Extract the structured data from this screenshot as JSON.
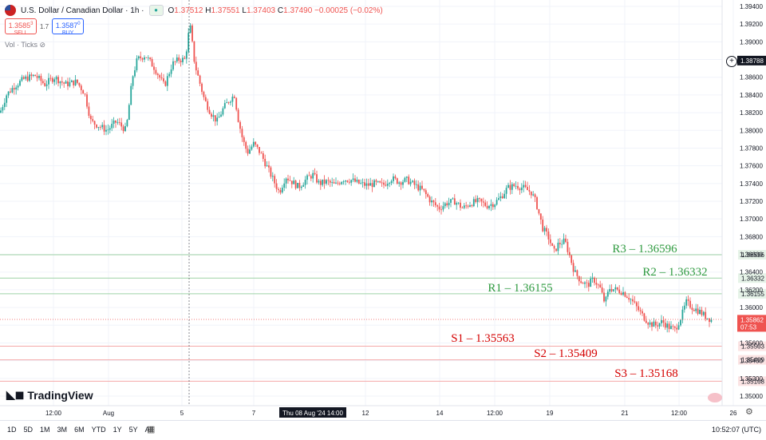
{
  "header": {
    "symbol": "U.S. Dollar / Canadian Dollar · 1h ·",
    "ohlc": {
      "o_label": "O",
      "o": "1.37512",
      "h_label": "H",
      "h": "1.37551",
      "l_label": "L",
      "l": "1.37403",
      "c_label": "C",
      "c": "1.37490",
      "change": "−0.00025 (−0.02%)"
    },
    "sell_price": "1.3585",
    "sell_sup": "3",
    "sell_label": "SELL",
    "spread": "1.7",
    "buy_price": "1.3587",
    "buy_sup": "0",
    "buy_label": "BUY",
    "volume_label": "Vol · Ticks"
  },
  "chart_data": {
    "type": "candlestick",
    "price_axis": {
      "ticks": [
        "1.39400",
        "1.39200",
        "1.39000",
        "1.38800",
        "1.38600",
        "1.38400",
        "1.38200",
        "1.38000",
        "1.37800",
        "1.37600",
        "1.37400",
        "1.37200",
        "1.37000",
        "1.36800",
        "1.36600",
        "1.36400",
        "1.36200",
        "1.36000",
        "1.35800",
        "1.35600",
        "1.35400",
        "1.35200",
        "1.35000"
      ],
      "range": [
        1.35,
        1.394
      ],
      "crosshair_label": "1.38788",
      "last_price_label": "1.35862",
      "countdown_label": "07:53"
    },
    "time_axis": {
      "ticks": [
        "12:00",
        "Aug",
        "5",
        "7",
        "12",
        "14",
        "12:00",
        "19",
        "21",
        "12:00",
        "26"
      ],
      "highlight_label": "Thu 08 Aug '24  14:00"
    },
    "levels": [
      {
        "name": "R3",
        "label": "R3 – 1.36596",
        "value": 1.36596,
        "axis_label": "1.36596",
        "color": "#2e9a3f"
      },
      {
        "name": "R2",
        "label": "R2 – 1.36332",
        "value": 1.36332,
        "axis_label": "1.36332",
        "color": "#2e9a3f"
      },
      {
        "name": "R1",
        "label": "R1 – 1.36155",
        "value": 1.36155,
        "axis_label": "1.36155",
        "color": "#2e9a3f"
      },
      {
        "name": "S1",
        "label": "S1 – 1.35563",
        "value": 1.35563,
        "axis_label": "1.35563",
        "color": "#d40000"
      },
      {
        "name": "S2",
        "label": "S2 – 1.35409",
        "value": 1.35409,
        "axis_label": "1.35409",
        "color": "#d40000"
      },
      {
        "name": "S3",
        "label": "S3 – 1.35168",
        "value": 1.35168,
        "axis_label": "1.35168",
        "color": "#d40000"
      }
    ],
    "path": [
      [
        0,
        1.382
      ],
      [
        8,
        1.384
      ],
      [
        18,
        1.385
      ],
      [
        30,
        1.3858
      ],
      [
        44,
        1.3862
      ],
      [
        56,
        1.3852
      ],
      [
        68,
        1.386
      ],
      [
        82,
        1.3852
      ],
      [
        96,
        1.3855
      ],
      [
        106,
        1.3842
      ],
      [
        114,
        1.381
      ],
      [
        124,
        1.3805
      ],
      [
        134,
        1.38
      ],
      [
        146,
        1.381
      ],
      [
        158,
        1.38
      ],
      [
        166,
        1.386
      ],
      [
        172,
        1.388
      ],
      [
        182,
        1.3885
      ],
      [
        194,
        1.387
      ],
      [
        206,
        1.385
      ],
      [
        216,
        1.3875
      ],
      [
        224,
        1.388
      ],
      [
        232,
        1.388
      ],
      [
        238,
        1.392
      ],
      [
        244,
        1.3875
      ],
      [
        250,
        1.3855
      ],
      [
        256,
        1.3835
      ],
      [
        264,
        1.382
      ],
      [
        272,
        1.381
      ],
      [
        280,
        1.3825
      ],
      [
        288,
        1.3835
      ],
      [
        294,
        1.384
      ],
      [
        298,
        1.3815
      ],
      [
        304,
        1.379
      ],
      [
        310,
        1.3775
      ],
      [
        318,
        1.3785
      ],
      [
        326,
        1.3775
      ],
      [
        334,
        1.376
      ],
      [
        342,
        1.3745
      ],
      [
        350,
        1.373
      ],
      [
        358,
        1.3748
      ],
      [
        366,
        1.3742
      ],
      [
        374,
        1.3736
      ],
      [
        384,
        1.3745
      ],
      [
        392,
        1.375
      ],
      [
        400,
        1.374
      ],
      [
        410,
        1.3742
      ],
      [
        420,
        1.3738
      ],
      [
        430,
        1.3745
      ],
      [
        440,
        1.3744
      ],
      [
        450,
        1.374
      ],
      [
        460,
        1.3738
      ],
      [
        470,
        1.374
      ],
      [
        480,
        1.3738
      ],
      [
        490,
        1.3746
      ],
      [
        500,
        1.3742
      ],
      [
        510,
        1.3744
      ],
      [
        520,
        1.3738
      ],
      [
        530,
        1.3732
      ],
      [
        540,
        1.372
      ],
      [
        550,
        1.3712
      ],
      [
        560,
        1.3718
      ],
      [
        570,
        1.372
      ],
      [
        580,
        1.3712
      ],
      [
        590,
        1.3718
      ],
      [
        600,
        1.372
      ],
      [
        610,
        1.3715
      ],
      [
        620,
        1.3718
      ],
      [
        628,
        1.3725
      ],
      [
        636,
        1.3735
      ],
      [
        646,
        1.3738
      ],
      [
        656,
        1.3735
      ],
      [
        666,
        1.373
      ],
      [
        672,
        1.3718
      ],
      [
        680,
        1.369
      ],
      [
        688,
        1.3678
      ],
      [
        694,
        1.3662
      ],
      [
        700,
        1.3672
      ],
      [
        708,
        1.3675
      ],
      [
        714,
        1.3658
      ],
      [
        720,
        1.364
      ],
      [
        728,
        1.363
      ],
      [
        736,
        1.3625
      ],
      [
        744,
        1.3632
      ],
      [
        752,
        1.3622
      ],
      [
        758,
        1.3605
      ],
      [
        764,
        1.3622
      ],
      [
        772,
        1.362
      ],
      [
        780,
        1.3618
      ],
      [
        790,
        1.361
      ],
      [
        798,
        1.36
      ],
      [
        806,
        1.359
      ],
      [
        814,
        1.3582
      ],
      [
        822,
        1.358
      ],
      [
        830,
        1.3584
      ],
      [
        838,
        1.3578
      ],
      [
        846,
        1.3575
      ],
      [
        854,
        1.359
      ],
      [
        860,
        1.3606
      ],
      [
        868,
        1.36
      ],
      [
        876,
        1.3596
      ],
      [
        884,
        1.359
      ],
      [
        892,
        1.3586
      ]
    ]
  },
  "toolbar": {
    "ranges": [
      "1D",
      "5D",
      "1M",
      "3M",
      "6M",
      "YTD",
      "1Y",
      "5Y",
      "All"
    ],
    "clock": "10:52:07 (UTC)"
  },
  "branding": {
    "name": "TradingView"
  },
  "icons": {
    "goto_date": "calendar-icon",
    "settings": "gear-icon",
    "add": "plus-icon"
  }
}
